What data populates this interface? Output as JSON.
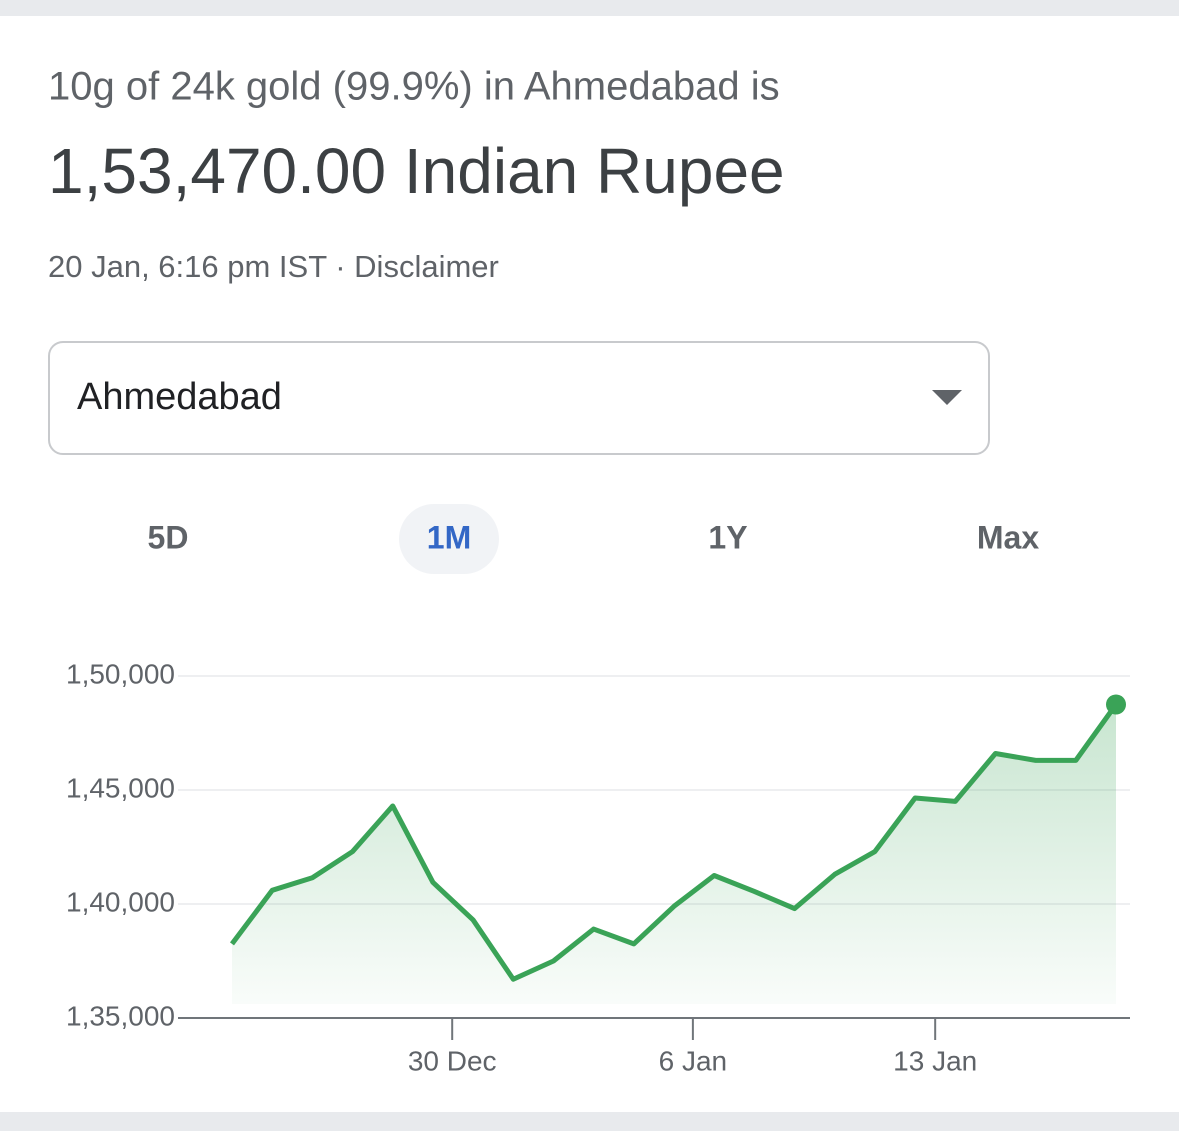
{
  "header": {
    "subtitle": "10g of 24k gold (99.9%) in Ahmedabad is",
    "price": "1,53,470.00 Indian Rupee",
    "timestamp": "20 Jan, 6:16 pm IST",
    "separator": "·",
    "disclaimer": "Disclaimer"
  },
  "dropdown": {
    "selected": "Ahmedabad"
  },
  "tabs": {
    "items": [
      "5D",
      "1M",
      "1Y",
      "Max"
    ],
    "active": 1
  },
  "chart_data": {
    "type": "line",
    "color": "#3aa357",
    "x": [
      0,
      1,
      2,
      3,
      4,
      5,
      6,
      7,
      8,
      9,
      10,
      11,
      12,
      13,
      14,
      15,
      16,
      17,
      18,
      19,
      20,
      21,
      22
    ],
    "values": [
      138250,
      140600,
      141150,
      142300,
      144300,
      140950,
      139300,
      136700,
      137500,
      138900,
      138250,
      139900,
      141250,
      140550,
      139800,
      141300,
      142300,
      144650,
      144500,
      146600,
      146300,
      146300,
      148750
    ],
    "xlim": [
      0,
      22
    ],
    "xticks": [
      {
        "value": 5.48,
        "label": "30 Dec"
      },
      {
        "value": 11.47,
        "label": "6 Jan"
      },
      {
        "value": 17.5,
        "label": "13 Jan"
      }
    ],
    "ylim": [
      135000,
      150000
    ],
    "yticks": [
      {
        "value": 135000,
        "label": "1,35,000"
      },
      {
        "value": 140000,
        "label": "1,40,000"
      },
      {
        "value": 145000,
        "label": "1,45,000"
      },
      {
        "value": 150000,
        "label": "1,50,000"
      }
    ],
    "grid": true
  }
}
